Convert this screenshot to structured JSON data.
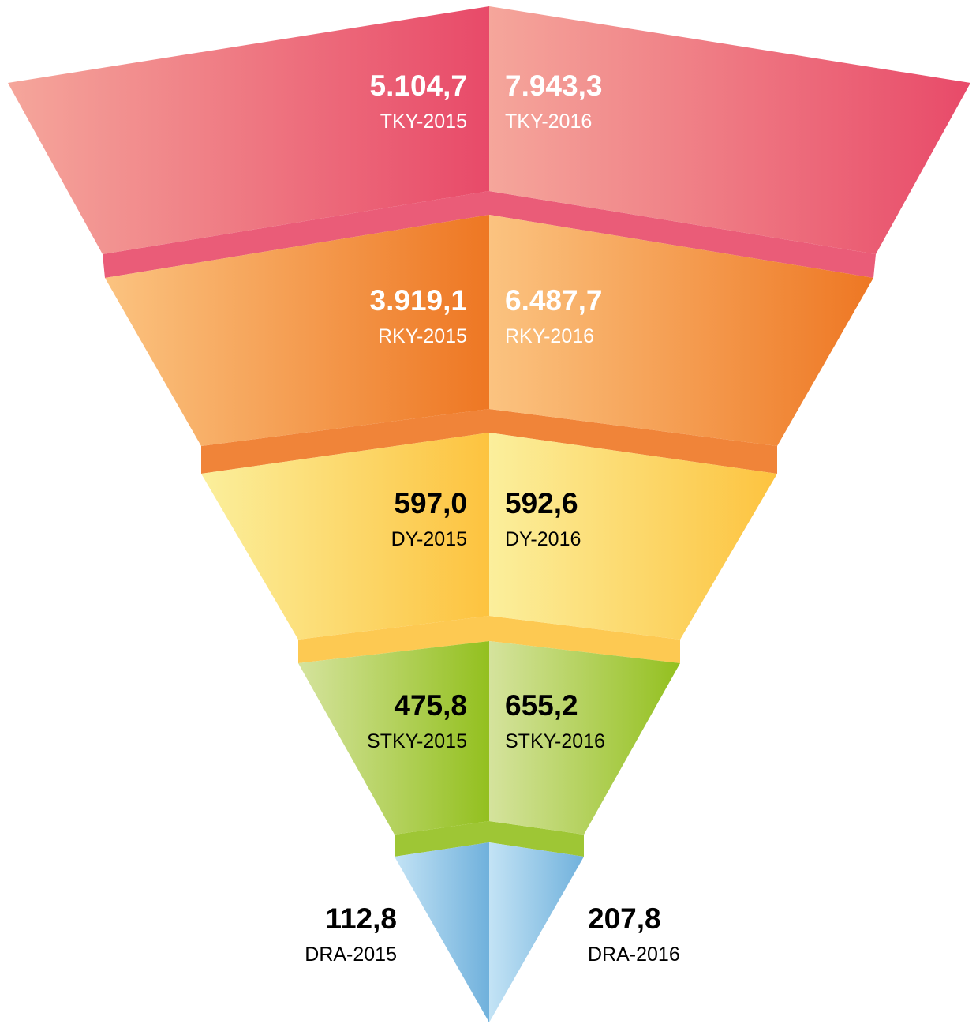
{
  "chart_data": {
    "type": "funnel",
    "levels": [
      {
        "labels": [
          "TKY-2015",
          "TKY-2016"
        ],
        "values": [
          5104.7,
          7943.3
        ],
        "value_labels": [
          "5.104,7",
          "7.943,3"
        ],
        "colors": [
          "#f5a69b",
          "#e84a69"
        ],
        "text_color": "#ffffff"
      },
      {
        "labels": [
          "RKY-2015",
          "RKY-2016"
        ],
        "values": [
          3919.1,
          6487.7
        ],
        "value_labels": [
          "3.919,1",
          "6.487,7"
        ],
        "colors": [
          "#fbc380",
          "#ee7723"
        ],
        "text_color": "#ffffff"
      },
      {
        "labels": [
          "DY-2015",
          "DY-2016"
        ],
        "values": [
          597.0,
          592.6
        ],
        "value_labels": [
          "597,0",
          "592,6"
        ],
        "colors": [
          "#fbef9c",
          "#fdc33f"
        ],
        "text_color": "#000000"
      },
      {
        "labels": [
          "STKY-2015",
          "STKY-2016"
        ],
        "values": [
          475.8,
          655.2
        ],
        "value_labels": [
          "475,8",
          "655,2"
        ],
        "colors": [
          "#d5e39d",
          "#93c01f"
        ],
        "text_color": "#000000"
      },
      {
        "labels": [
          "DRA-2015",
          "DRA-2016"
        ],
        "values": [
          112.8,
          207.8
        ],
        "value_labels": [
          "112,8",
          "207,8"
        ],
        "colors": [
          "#c3e3f5",
          "#70b1dc"
        ],
        "text_color": "#000000"
      }
    ]
  }
}
